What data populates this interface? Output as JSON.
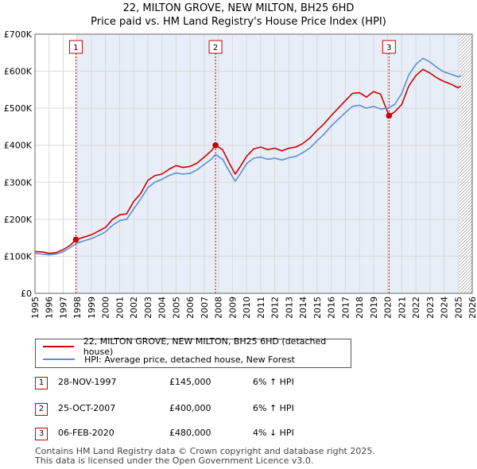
{
  "title_line1": "22, MILTON GROVE, NEW MILTON, BH25 6HD",
  "title_line2": "Price paid vs. HM Land Registry's House Price Index (HPI)",
  "colors": {
    "property": "#cc0000",
    "hpi": "#5b8fd0",
    "shade": "#e8eef8",
    "grid": "#d8d8d8"
  },
  "chart_data": {
    "type": "line",
    "xlim": [
      1995,
      2026
    ],
    "ylim": [
      0,
      700000
    ],
    "y_ticks": [
      {
        "value": 0,
        "label": "£0"
      },
      {
        "value": 100000,
        "label": "£100K"
      },
      {
        "value": 200000,
        "label": "£200K"
      },
      {
        "value": 300000,
        "label": "£300K"
      },
      {
        "value": 400000,
        "label": "£400K"
      },
      {
        "value": 500000,
        "label": "£500K"
      },
      {
        "value": 600000,
        "label": "£600K"
      },
      {
        "value": 700000,
        "label": "£700K"
      }
    ],
    "x_ticks": [
      "1995",
      "1996",
      "1997",
      "1998",
      "1999",
      "2000",
      "2001",
      "2002",
      "2003",
      "2004",
      "2005",
      "2006",
      "2007",
      "2008",
      "2009",
      "2010",
      "2011",
      "2012",
      "2013",
      "2014",
      "2015",
      "2016",
      "2017",
      "2018",
      "2019",
      "2020",
      "2021",
      "2022",
      "2023",
      "2024",
      "2025",
      "2026"
    ],
    "shaded_from": 1997.9,
    "hatched_from": 2025.1,
    "series": [
      {
        "name": "22, MILTON GROVE, NEW MILTON, BH25 6HD (detached house)",
        "color": "#cc0000",
        "points": [
          [
            1995.0,
            113000
          ],
          [
            1995.5,
            112000
          ],
          [
            1996.0,
            108000
          ],
          [
            1996.5,
            110000
          ],
          [
            1997.0,
            118000
          ],
          [
            1997.5,
            130000
          ],
          [
            1997.9,
            145000
          ],
          [
            1998.5,
            152000
          ],
          [
            1999.0,
            158000
          ],
          [
            1999.5,
            168000
          ],
          [
            2000.0,
            178000
          ],
          [
            2000.5,
            200000
          ],
          [
            2001.0,
            212000
          ],
          [
            2001.5,
            215000
          ],
          [
            2002.0,
            248000
          ],
          [
            2002.5,
            270000
          ],
          [
            2003.0,
            305000
          ],
          [
            2003.5,
            318000
          ],
          [
            2004.0,
            322000
          ],
          [
            2004.5,
            335000
          ],
          [
            2005.0,
            345000
          ],
          [
            2005.5,
            340000
          ],
          [
            2006.0,
            343000
          ],
          [
            2006.5,
            352000
          ],
          [
            2007.0,
            368000
          ],
          [
            2007.5,
            385000
          ],
          [
            2007.8,
            400000
          ],
          [
            2008.3,
            388000
          ],
          [
            2008.8,
            350000
          ],
          [
            2009.2,
            322000
          ],
          [
            2009.6,
            345000
          ],
          [
            2010.0,
            370000
          ],
          [
            2010.5,
            390000
          ],
          [
            2011.0,
            395000
          ],
          [
            2011.5,
            388000
          ],
          [
            2012.0,
            392000
          ],
          [
            2012.5,
            385000
          ],
          [
            2013.0,
            392000
          ],
          [
            2013.5,
            395000
          ],
          [
            2014.0,
            405000
          ],
          [
            2014.5,
            420000
          ],
          [
            2015.0,
            440000
          ],
          [
            2015.5,
            458000
          ],
          [
            2016.0,
            480000
          ],
          [
            2016.5,
            500000
          ],
          [
            2017.0,
            520000
          ],
          [
            2017.5,
            540000
          ],
          [
            2018.0,
            542000
          ],
          [
            2018.5,
            530000
          ],
          [
            2019.0,
            545000
          ],
          [
            2019.5,
            538000
          ],
          [
            2020.1,
            480000
          ],
          [
            2020.5,
            490000
          ],
          [
            2021.0,
            510000
          ],
          [
            2021.5,
            560000
          ],
          [
            2022.0,
            588000
          ],
          [
            2022.5,
            605000
          ],
          [
            2023.0,
            595000
          ],
          [
            2023.5,
            582000
          ],
          [
            2024.0,
            572000
          ],
          [
            2024.5,
            565000
          ],
          [
            2025.0,
            555000
          ],
          [
            2025.2,
            560000
          ]
        ]
      },
      {
        "name": "HPI: Average price, detached house, New Forest",
        "color": "#5b8fd0",
        "points": [
          [
            1995.0,
            108000
          ],
          [
            1995.5,
            106000
          ],
          [
            1996.0,
            104000
          ],
          [
            1996.5,
            106000
          ],
          [
            1997.0,
            112000
          ],
          [
            1997.5,
            124000
          ],
          [
            1998.0,
            136000
          ],
          [
            1998.5,
            142000
          ],
          [
            1999.0,
            148000
          ],
          [
            1999.5,
            156000
          ],
          [
            2000.0,
            166000
          ],
          [
            2000.5,
            184000
          ],
          [
            2001.0,
            196000
          ],
          [
            2001.5,
            200000
          ],
          [
            2002.0,
            228000
          ],
          [
            2002.5,
            255000
          ],
          [
            2003.0,
            285000
          ],
          [
            2003.5,
            300000
          ],
          [
            2004.0,
            308000
          ],
          [
            2004.5,
            318000
          ],
          [
            2005.0,
            325000
          ],
          [
            2005.5,
            322000
          ],
          [
            2006.0,
            324000
          ],
          [
            2006.5,
            334000
          ],
          [
            2007.0,
            348000
          ],
          [
            2007.5,
            362000
          ],
          [
            2007.8,
            375000
          ],
          [
            2008.3,
            362000
          ],
          [
            2008.8,
            328000
          ],
          [
            2009.2,
            303000
          ],
          [
            2009.6,
            325000
          ],
          [
            2010.0,
            350000
          ],
          [
            2010.5,
            365000
          ],
          [
            2011.0,
            368000
          ],
          [
            2011.5,
            362000
          ],
          [
            2012.0,
            365000
          ],
          [
            2012.5,
            360000
          ],
          [
            2013.0,
            366000
          ],
          [
            2013.5,
            370000
          ],
          [
            2014.0,
            380000
          ],
          [
            2014.5,
            393000
          ],
          [
            2015.0,
            412000
          ],
          [
            2015.5,
            430000
          ],
          [
            2016.0,
            452000
          ],
          [
            2016.5,
            470000
          ],
          [
            2017.0,
            488000
          ],
          [
            2017.5,
            505000
          ],
          [
            2018.0,
            508000
          ],
          [
            2018.5,
            500000
          ],
          [
            2019.0,
            505000
          ],
          [
            2019.5,
            498000
          ],
          [
            2020.0,
            500000
          ],
          [
            2020.5,
            510000
          ],
          [
            2021.0,
            540000
          ],
          [
            2021.5,
            590000
          ],
          [
            2022.0,
            618000
          ],
          [
            2022.5,
            635000
          ],
          [
            2023.0,
            625000
          ],
          [
            2023.5,
            610000
          ],
          [
            2024.0,
            598000
          ],
          [
            2024.5,
            592000
          ],
          [
            2025.0,
            585000
          ],
          [
            2025.2,
            588000
          ]
        ]
      }
    ],
    "markers": [
      {
        "label": "1",
        "x": 1997.9,
        "y": 145000
      },
      {
        "label": "2",
        "x": 2007.8,
        "y": 400000
      },
      {
        "label": "3",
        "x": 2020.1,
        "y": 480000
      }
    ]
  },
  "legend": {
    "property": "22, MILTON GROVE, NEW MILTON, BH25 6HD (detached house)",
    "hpi": "HPI: Average price, detached house, New Forest"
  },
  "sales": [
    {
      "num": "1",
      "date": "28-NOV-1997",
      "price": "£145,000",
      "hpi": "6% ↑ HPI"
    },
    {
      "num": "2",
      "date": "25-OCT-2007",
      "price": "£400,000",
      "hpi": "6% ↑ HPI"
    },
    {
      "num": "3",
      "date": "06-FEB-2020",
      "price": "£480,000",
      "hpi": "4% ↓ HPI"
    }
  ],
  "footer": {
    "line1": "Contains HM Land Registry data © Crown copyright and database right 2025.",
    "line2": "This data is licensed under the Open Government Licence v3.0."
  }
}
